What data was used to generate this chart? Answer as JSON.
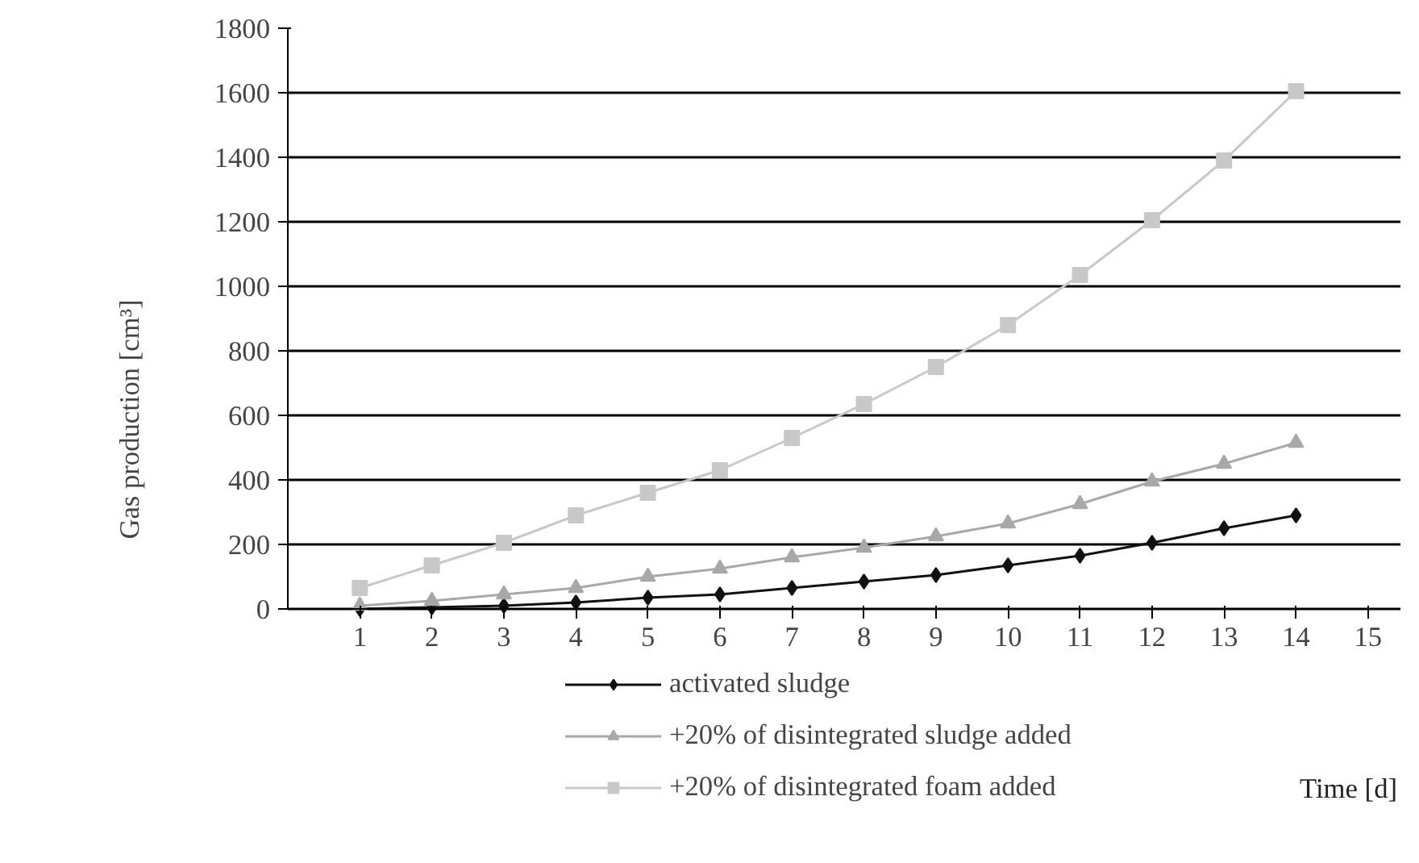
{
  "chart_data": {
    "type": "line",
    "xlabel": "Time [d]",
    "ylabel": "Gas production [cm³]",
    "x": [
      1,
      2,
      3,
      4,
      5,
      6,
      7,
      8,
      9,
      10,
      11,
      12,
      13,
      14
    ],
    "series": [
      {
        "name": "activated sludge",
        "color": "#111111",
        "marker": "diamond",
        "values": [
          0,
          5,
          10,
          20,
          35,
          45,
          65,
          85,
          105,
          135,
          165,
          205,
          250,
          290
        ]
      },
      {
        "name": "+20% of disintegrated sludge added",
        "color": "#a8a8a8",
        "marker": "triangle",
        "values": [
          10,
          25,
          45,
          65,
          100,
          125,
          160,
          190,
          225,
          265,
          325,
          395,
          450,
          515
        ]
      },
      {
        "name": "+20% of disintegrated foam added",
        "color": "#c8c8c8",
        "marker": "square",
        "values": [
          65,
          135,
          205,
          290,
          360,
          430,
          530,
          635,
          750,
          880,
          1035,
          1205,
          1390,
          1605
        ]
      }
    ],
    "xlim": [
      0,
      15
    ],
    "xticks": [
      1,
      2,
      3,
      4,
      5,
      6,
      7,
      8,
      9,
      10,
      11,
      12,
      13,
      14,
      15
    ],
    "ylim": [
      0,
      1800
    ],
    "yticks": [
      0,
      200,
      400,
      600,
      800,
      1000,
      1200,
      1400,
      1600,
      1800
    ],
    "grid": "y",
    "legend": "bottom",
    "line_style": "solid"
  }
}
